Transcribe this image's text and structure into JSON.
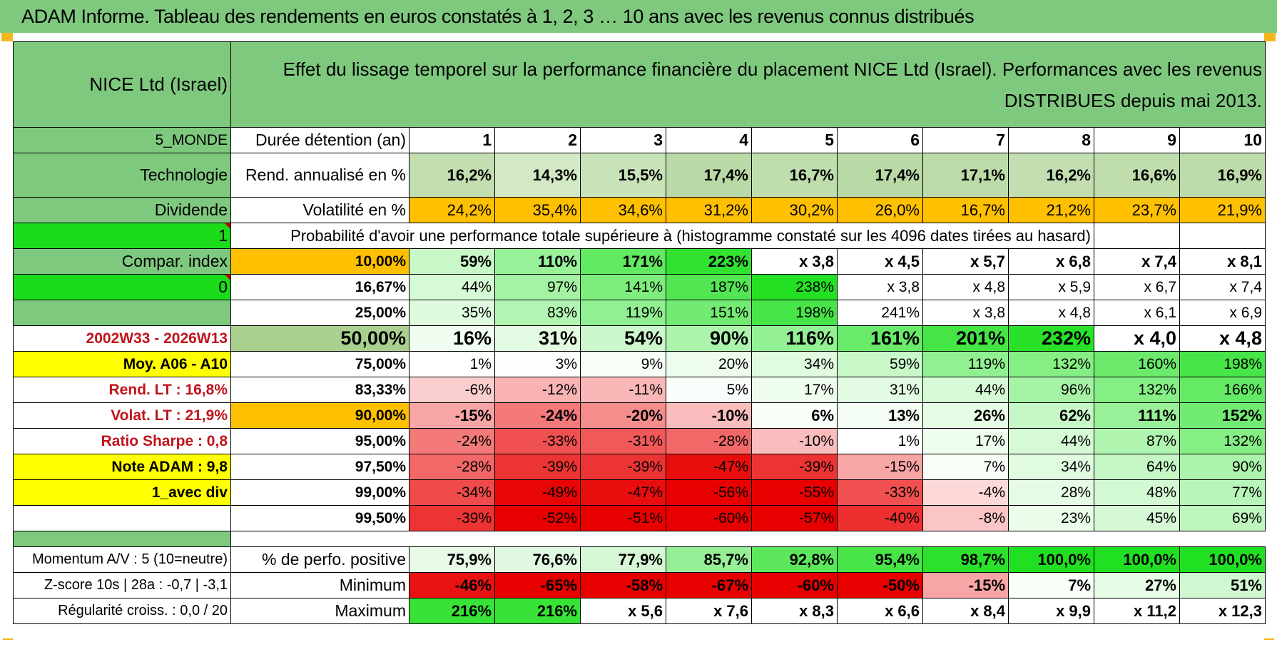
{
  "title": "ADAM Informe. Tableau des rendements en euros constatés à 1, 2, 3 … 10 ans avec les revenus connus distribués",
  "colors": {
    "header_green": "#7fc97f",
    "bright_green": "#1bdb1b",
    "yellow": "#ffff00",
    "orange": "#ffc000",
    "label_red": "#c0141c"
  },
  "left": {
    "company": "NICE Ltd (Israel)",
    "zone": "5_MONDE",
    "sector": "Technologie",
    "type": "Dividende",
    "flag1": "1",
    "compar": "Compar. index",
    "flag0": "0",
    "period": "2002W33 - 2026W13",
    "moy": "Moy. A06 - A10",
    "rend_lt": "Rend. LT :    16,8%",
    "volat_lt": "Volat. LT :    21,9%",
    "sharpe": "Ratio Sharpe :     0,8",
    "note": "Note ADAM : 9,8",
    "div": "1_avec div",
    "momentum": "Momentum A/V : 5 (10=neutre)",
    "zscore": "Z-score 10s | 28a : -0,7 | -3,1",
    "regularite": "Régularité croiss. : 0,0 / 20"
  },
  "description": "Effet du lissage temporel sur la performance financière du placement NICE Ltd (Israel). Performances avec les revenus DISTRIBUES depuis mai 2013.",
  "row_labels": {
    "duree": "Durée détention (an)",
    "rend": "Rend. annualisé en %",
    "vol": "Volatilité en %",
    "proba": "Probabilité d'avoir une performance totale supérieure à (histogramme constaté sur les 4096 dates tirées au hasard)",
    "perf_pos": "% de perfo. positive",
    "minimum": "Minimum",
    "maximum": "Maximum"
  },
  "years": [
    "1",
    "2",
    "3",
    "4",
    "5",
    "6",
    "7",
    "8",
    "9",
    "10"
  ],
  "rend": [
    "16,2%",
    "14,3%",
    "15,5%",
    "17,4%",
    "16,7%",
    "17,4%",
    "17,1%",
    "16,2%",
    "16,6%",
    "16,9%"
  ],
  "vol": [
    "24,2%",
    "35,4%",
    "34,6%",
    "31,2%",
    "30,2%",
    "26,0%",
    "16,7%",
    "21,2%",
    "23,7%",
    "21,9%"
  ],
  "prob_rows": [
    {
      "label": "10,00%",
      "values": [
        "59%",
        "110%",
        "171%",
        "223%",
        "x 3,8",
        "x 4,5",
        "x 5,7",
        "x 6,8",
        "x 7,4",
        "x 8,1"
      ]
    },
    {
      "label": "16,67%",
      "values": [
        "44%",
        "97%",
        "141%",
        "187%",
        "238%",
        "x 3,8",
        "x 4,8",
        "x 5,9",
        "x 6,7",
        "x 7,4"
      ]
    },
    {
      "label": "25,00%",
      "values": [
        "35%",
        "83%",
        "119%",
        "151%",
        "198%",
        "241%",
        "x 3,8",
        "x 4,8",
        "x 6,1",
        "x 6,9"
      ]
    },
    {
      "label": "50,00%",
      "values": [
        "16%",
        "31%",
        "54%",
        "90%",
        "116%",
        "161%",
        "201%",
        "232%",
        "x 4,0",
        "x 4,8"
      ]
    },
    {
      "label": "75,00%",
      "values": [
        "1%",
        "3%",
        "9%",
        "20%",
        "34%",
        "59%",
        "119%",
        "132%",
        "160%",
        "198%"
      ]
    },
    {
      "label": "83,33%",
      "values": [
        "-6%",
        "-12%",
        "-11%",
        "5%",
        "17%",
        "31%",
        "44%",
        "96%",
        "132%",
        "166%"
      ]
    },
    {
      "label": "90,00%",
      "values": [
        "-15%",
        "-24%",
        "-20%",
        "-10%",
        "6%",
        "13%",
        "26%",
        "62%",
        "111%",
        "152%"
      ]
    },
    {
      "label": "95,00%",
      "values": [
        "-24%",
        "-33%",
        "-31%",
        "-28%",
        "-10%",
        "1%",
        "17%",
        "44%",
        "87%",
        "132%"
      ]
    },
    {
      "label": "97,50%",
      "values": [
        "-28%",
        "-39%",
        "-39%",
        "-47%",
        "-39%",
        "-15%",
        "7%",
        "34%",
        "64%",
        "90%"
      ]
    },
    {
      "label": "99,00%",
      "values": [
        "-34%",
        "-49%",
        "-47%",
        "-56%",
        "-55%",
        "-33%",
        "-4%",
        "28%",
        "48%",
        "77%"
      ]
    },
    {
      "label": "99,50%",
      "values": [
        "-39%",
        "-52%",
        "-51%",
        "-60%",
        "-57%",
        "-40%",
        "-8%",
        "23%",
        "45%",
        "69%"
      ]
    }
  ],
  "perf_pos": [
    "75,9%",
    "76,6%",
    "77,9%",
    "85,7%",
    "92,8%",
    "95,4%",
    "98,7%",
    "100,0%",
    "100,0%",
    "100,0%"
  ],
  "minimum": [
    "-46%",
    "-65%",
    "-58%",
    "-67%",
    "-60%",
    "-50%",
    "-15%",
    "7%",
    "27%",
    "51%"
  ],
  "maximum": [
    "216%",
    "216%",
    "x 5,6",
    "x 7,6",
    "x 8,3",
    "x 6,6",
    "x 8,4",
    "x 9,9",
    "x 11,2",
    "x 12,3"
  ]
}
